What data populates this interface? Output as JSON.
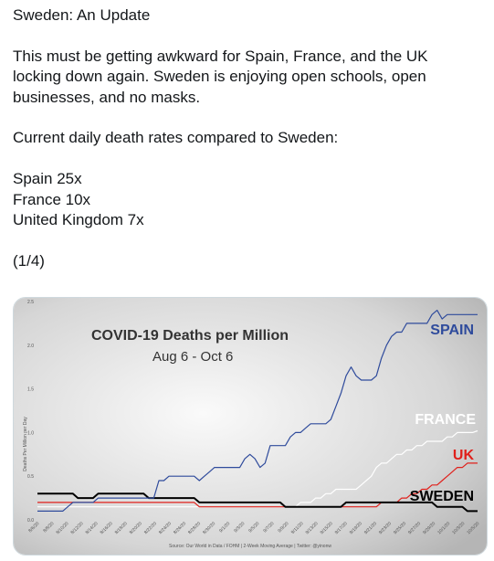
{
  "tweet": {
    "title_line": "Sweden: An Update",
    "paragraph1": [
      "This must be getting awkward for Spain, France, and the UK",
      "locking down again. Sweden is enjoying open schools, open",
      "businesses, and no masks."
    ],
    "paragraph2": "Current daily death rates compared to Sweden:",
    "rates": [
      "Spain 25x",
      "France 10x",
      "United Kingdom 7x"
    ],
    "thread_index": "(1/4)"
  },
  "chart_data": {
    "type": "line",
    "title": "COVID-19 Deaths per Million",
    "subtitle": "Aug 6 - Oct 6",
    "ylabel": "Deaths Per Million per Day",
    "ylim": [
      0,
      2.5
    ],
    "yticks": [
      "0.0",
      "0.5",
      "1.0",
      "1.5",
      "2.0",
      "2.5"
    ],
    "xticks": [
      "8/6/20",
      "8/8/20",
      "8/10/20",
      "8/12/20",
      "8/14/20",
      "8/16/20",
      "8/18/20",
      "8/20/20",
      "8/22/20",
      "8/24/20",
      "8/26/20",
      "8/28/20",
      "8/30/20",
      "9/1/20",
      "9/3/20",
      "9/5/20",
      "9/7/20",
      "9/9/20",
      "9/11/20",
      "9/13/20",
      "9/15/20",
      "9/17/20",
      "9/19/20",
      "9/21/20",
      "9/23/20",
      "9/25/20",
      "9/27/20",
      "9/29/20",
      "10/1/20",
      "10/3/20",
      "10/5/20"
    ],
    "source": "Source: Our World in Data / FOHM  |  2-Week Moving Average  |  Twitter: @yinonw",
    "series": [
      {
        "name": "SPAIN",
        "color": "#2f4b9c",
        "values": [
          0.1,
          0.1,
          0.1,
          0.1,
          0.1,
          0.1,
          0.15,
          0.2,
          0.2,
          0.2,
          0.2,
          0.2,
          0.25,
          0.25,
          0.25,
          0.25,
          0.25,
          0.25,
          0.25,
          0.25,
          0.25,
          0.25,
          0.25,
          0.25,
          0.45,
          0.45,
          0.5,
          0.5,
          0.5,
          0.5,
          0.5,
          0.5,
          0.45,
          0.5,
          0.55,
          0.6,
          0.6,
          0.6,
          0.6,
          0.6,
          0.6,
          0.7,
          0.75,
          0.7,
          0.6,
          0.65,
          0.85,
          0.85,
          0.85,
          0.85,
          0.95,
          1.0,
          1.0,
          1.05,
          1.1,
          1.1,
          1.1,
          1.1,
          1.15,
          1.3,
          1.45,
          1.65,
          1.75,
          1.65,
          1.6,
          1.6,
          1.6,
          1.65,
          1.85,
          2.0,
          2.1,
          2.15,
          2.15,
          2.25,
          2.25,
          2.25,
          2.25,
          2.25,
          2.35,
          2.4,
          2.3,
          2.35,
          2.35,
          2.35,
          2.35,
          2.35,
          2.35,
          2.35
        ]
      },
      {
        "name": "FRANCE",
        "color": "#ffffff",
        "values": [
          0.15,
          0.15,
          0.15,
          0.15,
          0.15,
          0.15,
          0.15,
          0.15,
          0.15,
          0.15,
          0.15,
          0.15,
          0.15,
          0.15,
          0.15,
          0.15,
          0.15,
          0.15,
          0.15,
          0.15,
          0.15,
          0.15,
          0.15,
          0.15,
          0.15,
          0.15,
          0.15,
          0.15,
          0.15,
          0.15,
          0.15,
          0.15,
          0.15,
          0.15,
          0.15,
          0.15,
          0.15,
          0.15,
          0.15,
          0.15,
          0.15,
          0.15,
          0.15,
          0.15,
          0.15,
          0.15,
          0.15,
          0.15,
          0.15,
          0.15,
          0.15,
          0.15,
          0.2,
          0.2,
          0.2,
          0.25,
          0.25,
          0.3,
          0.3,
          0.35,
          0.35,
          0.35,
          0.35,
          0.35,
          0.4,
          0.45,
          0.5,
          0.6,
          0.65,
          0.65,
          0.7,
          0.75,
          0.75,
          0.8,
          0.8,
          0.85,
          0.85,
          0.9,
          0.9,
          0.9,
          0.9,
          0.95,
          0.95,
          1.0,
          1.0,
          1.0,
          1.0,
          1.02
        ]
      },
      {
        "name": "UK",
        "color": "#e0201b",
        "values": [
          0.2,
          0.2,
          0.2,
          0.2,
          0.2,
          0.2,
          0.2,
          0.2,
          0.2,
          0.2,
          0.2,
          0.2,
          0.2,
          0.2,
          0.2,
          0.2,
          0.2,
          0.2,
          0.2,
          0.2,
          0.2,
          0.2,
          0.2,
          0.2,
          0.2,
          0.2,
          0.2,
          0.2,
          0.2,
          0.2,
          0.2,
          0.2,
          0.15,
          0.15,
          0.15,
          0.15,
          0.15,
          0.15,
          0.15,
          0.15,
          0.15,
          0.15,
          0.15,
          0.15,
          0.15,
          0.15,
          0.15,
          0.15,
          0.15,
          0.15,
          0.15,
          0.15,
          0.15,
          0.15,
          0.15,
          0.15,
          0.15,
          0.15,
          0.15,
          0.15,
          0.15,
          0.15,
          0.15,
          0.15,
          0.15,
          0.15,
          0.15,
          0.15,
          0.2,
          0.2,
          0.2,
          0.2,
          0.25,
          0.25,
          0.3,
          0.3,
          0.35,
          0.35,
          0.4,
          0.4,
          0.45,
          0.5,
          0.55,
          0.6,
          0.6,
          0.65,
          0.65,
          0.65
        ]
      },
      {
        "name": "SWEDEN",
        "color": "#000000",
        "values": [
          0.3,
          0.3,
          0.3,
          0.3,
          0.3,
          0.3,
          0.3,
          0.3,
          0.25,
          0.25,
          0.25,
          0.25,
          0.3,
          0.3,
          0.3,
          0.3,
          0.3,
          0.3,
          0.3,
          0.3,
          0.3,
          0.3,
          0.25,
          0.25,
          0.25,
          0.25,
          0.25,
          0.25,
          0.25,
          0.25,
          0.25,
          0.25,
          0.2,
          0.2,
          0.2,
          0.2,
          0.2,
          0.2,
          0.2,
          0.2,
          0.2,
          0.2,
          0.2,
          0.2,
          0.2,
          0.2,
          0.2,
          0.2,
          0.2,
          0.15,
          0.15,
          0.15,
          0.15,
          0.15,
          0.15,
          0.15,
          0.15,
          0.15,
          0.15,
          0.15,
          0.15,
          0.2,
          0.2,
          0.2,
          0.2,
          0.2,
          0.2,
          0.2,
          0.2,
          0.2,
          0.2,
          0.2,
          0.2,
          0.2,
          0.2,
          0.2,
          0.2,
          0.2,
          0.2,
          0.15,
          0.15,
          0.15,
          0.15,
          0.15,
          0.15,
          0.1,
          0.1,
          0.1
        ]
      }
    ]
  }
}
